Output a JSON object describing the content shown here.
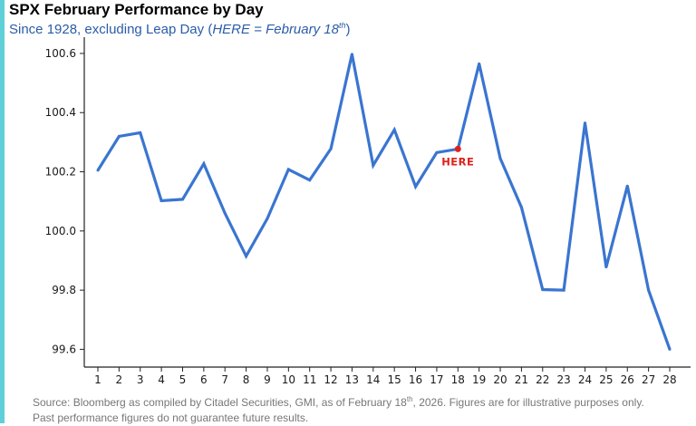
{
  "header": {
    "title": "SPX February Performance by Day",
    "subtitle_prefix": "Since 1928, excluding Leap Day (",
    "subtitle_here": "HERE",
    "subtitle_eq": " = February 18",
    "subtitle_sup": "th",
    "subtitle_suffix": ")"
  },
  "colors": {
    "line": "#3a75d0",
    "marker": "#e0201b",
    "accent_bar": "#5fd0d8",
    "subtitle": "#2b5ca8"
  },
  "chart_data": {
    "type": "line",
    "title": "SPX February Performance by Day",
    "subtitle": "Since 1928, excluding Leap Day (HERE = February 18th)",
    "xlabel": "",
    "ylabel": "",
    "x": [
      1,
      2,
      3,
      4,
      5,
      6,
      7,
      8,
      9,
      10,
      11,
      12,
      13,
      14,
      15,
      16,
      17,
      18,
      19,
      20,
      21,
      22,
      23,
      24,
      25,
      26,
      27,
      28
    ],
    "y_ticks": [
      "100.6",
      "100.4",
      "100.2",
      "100.0",
      "99.8",
      "99.6"
    ],
    "series": [
      {
        "values": [
          100.205,
          100.32,
          100.332,
          100.102,
          100.107,
          100.227,
          100.06,
          99.915,
          100.042,
          100.208,
          100.172,
          100.278,
          100.597,
          100.222,
          100.342,
          100.15,
          100.265,
          100.277,
          100.565,
          100.245,
          100.08,
          99.802,
          99.8,
          100.365,
          99.878,
          100.152,
          99.8,
          99.6
        ]
      }
    ],
    "ylim": [
      99.54,
      100.655
    ],
    "grid": false,
    "legend": "none",
    "annotation": {
      "x": 18,
      "y": 100.277,
      "label": "HERE"
    }
  },
  "footer": {
    "source_line1_a": "Source: Bloomberg as compiled by Citadel Securities, GMI, as of February 18",
    "source_line1_sup": "th",
    "source_line1_b": ", 2026. Figures are for illustrative purposes only.",
    "source_line2": "Past performance figures do not guarantee future results."
  }
}
